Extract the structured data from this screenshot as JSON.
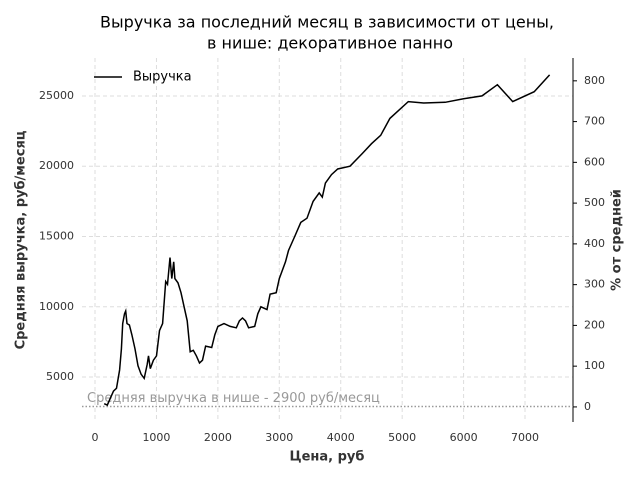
{
  "chart_data": {
    "type": "line",
    "title": [
      "Выручка за последний месяц в зависимости от цены,",
      "в нише: декоративное панно"
    ],
    "xlabel": "Цена, руб",
    "ylabel": "Средняя выручка, руб/месяц",
    "y2label": "% от средней",
    "x": [
      150,
      200,
      250,
      300,
      350,
      400,
      430,
      450,
      480,
      500,
      520,
      560,
      600,
      650,
      700,
      750,
      800,
      850,
      870,
      900,
      950,
      1000,
      1050,
      1100,
      1150,
      1180,
      1220,
      1250,
      1280,
      1300,
      1350,
      1400,
      1450,
      1500,
      1550,
      1600,
      1650,
      1700,
      1750,
      1800,
      1900,
      1950,
      2000,
      2100,
      2200,
      2300,
      2350,
      2400,
      2450,
      2500,
      2600,
      2650,
      2700,
      2800,
      2850,
      2950,
      3000,
      3100,
      3150,
      3250,
      3350,
      3450,
      3550,
      3650,
      3700,
      3750,
      3850,
      3950,
      4150,
      4350,
      4500,
      4650,
      4800,
      5100,
      5350,
      5700,
      6000,
      6300,
      6550,
      6800,
      7150,
      7400
    ],
    "series": [
      {
        "name": "Выручка",
        "color": "#000000",
        "values": [
          3100,
          3000,
          3500,
          4000,
          4200,
          5500,
          7000,
          8800,
          9500,
          9700,
          8800,
          8700,
          8000,
          7000,
          5800,
          5200,
          4900,
          5900,
          6500,
          5600,
          6200,
          6500,
          8300,
          8800,
          11800,
          11600,
          13500,
          12000,
          13200,
          12000,
          11700,
          11000,
          10000,
          9000,
          6800,
          6900,
          6500,
          6000,
          6200,
          7200,
          7100,
          8000,
          8600,
          8800,
          8600,
          8500,
          9000,
          9200,
          9000,
          8500,
          8600,
          9500,
          10000,
          9800,
          10900,
          11000,
          12000,
          13200,
          14000,
          15000,
          16000,
          16300,
          17500,
          18100,
          17800,
          18800,
          19400,
          19800,
          20000,
          20900,
          21600,
          22200,
          23400,
          24600,
          24500,
          24550,
          24800,
          25000,
          25800,
          24600,
          25300,
          26500
        ]
      }
    ],
    "xlim": [
      -212,
      7781
    ],
    "xticks": [
      0,
      1000,
      2000,
      3000,
      4000,
      5000,
      6000,
      7000
    ],
    "ylim": [
      1800,
      27700
    ],
    "yticks": [
      5000,
      10000,
      15000,
      20000,
      25000
    ],
    "y2lim": [
      -37,
      856
    ],
    "y2ticks": [
      0,
      100,
      200,
      300,
      400,
      500,
      600,
      700,
      800
    ],
    "grid": true,
    "legend": "upper left",
    "hline": {
      "value": 2900,
      "label": "Средняя выручка в нише - 2900 руб/месяц",
      "color": "#999999"
    }
  }
}
